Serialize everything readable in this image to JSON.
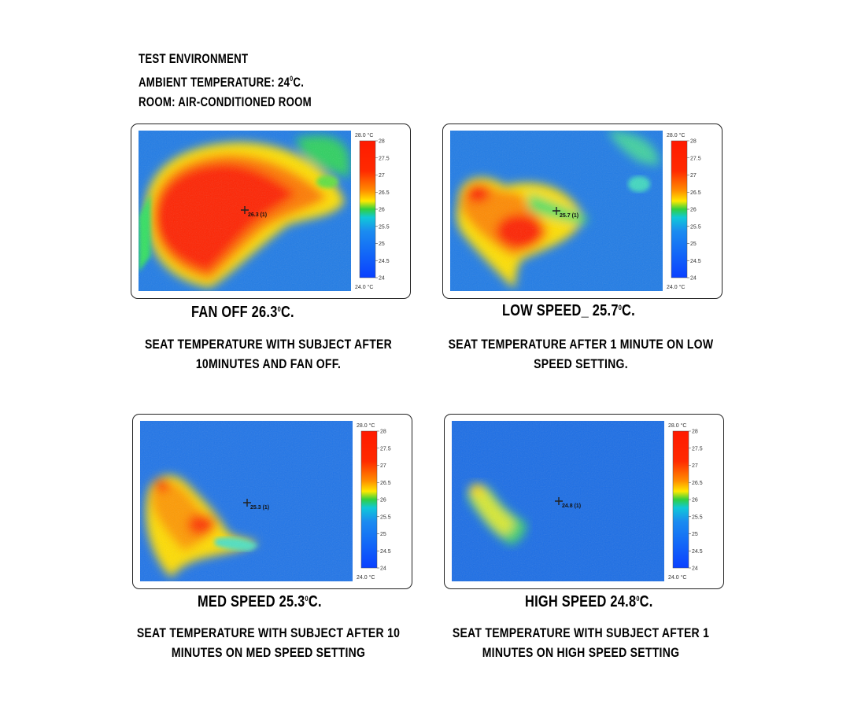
{
  "environment": {
    "line1": "TEST ENVIRONMENT",
    "line2_prefix": "AMBIENT TEMPERATURE: 24",
    "line2_sup": "0",
    "line2_suffix": "C.",
    "line3": "ROOM: AIR-CONDITIONED ROOM"
  },
  "scale": {
    "top_label": "28.0 °C",
    "bottom_label": "24.0 °C",
    "ticks": [
      "28",
      "27.5",
      "27",
      "26.5",
      "26",
      "25.5",
      "25",
      "24.5",
      "24"
    ]
  },
  "panels": [
    {
      "title_prefix": "FAN OFF 26.3",
      "title_sup": "0",
      "title_suffix": "C.",
      "desc_line1": "SEAT TEMPERATURE WITH SUBJECT AFTER",
      "desc_line2": "10MINUTES AND FAN OFF.",
      "marker_label": "26.3 (1)",
      "colors": {
        "bg": "#1f7be6"
      }
    },
    {
      "title_prefix": "LOW SPEED_ 25.7",
      "title_sup": "0",
      "title_suffix": "C.",
      "desc_line1": "SEAT TEMPERATURE AFTER 1 MINUTE ON LOW",
      "desc_line2": "SPEED SETTING.",
      "marker_label": "25.7 (1)",
      "colors": {
        "bg": "#1f7be6"
      }
    },
    {
      "title_prefix": "MED SPEED 25.3",
      "title_sup": "0",
      "title_suffix": "C.",
      "desc_line1": "SEAT TEMPERATURE WITH SUBJECT AFTER 10",
      "desc_line2": "MINUTES ON MED SPEED SETTING",
      "marker_label": "25.3 (1)",
      "colors": {
        "bg": "#1f74e8"
      }
    },
    {
      "title_prefix": "HIGH SPEED 24.8",
      "title_sup": "0",
      "title_suffix": "C.",
      "desc_line1": "SEAT TEMPERATURE WITH SUBJECT AFTER 1",
      "desc_line2": "MINUTES ON HIGH SPEED SETTING",
      "marker_label": "24.8 (1)",
      "colors": {
        "bg": "#1a6de6"
      }
    }
  ]
}
